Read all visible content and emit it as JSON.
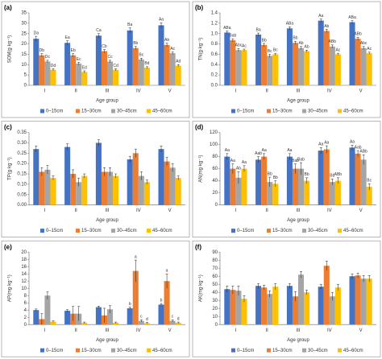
{
  "chart_data": [
    {
      "type": "bar",
      "panel": "(a)",
      "y_label": "SOM(g·kg⁻¹)",
      "x_label": "Age group",
      "categories": [
        "I",
        "II",
        "III",
        "IV",
        "V"
      ],
      "ylim": [
        0,
        35
      ],
      "yticks": [
        0,
        5,
        10,
        15,
        20,
        25,
        30,
        35
      ],
      "series": [
        {
          "name": "0–15cm",
          "color": "#4472c4",
          "values": [
            22.5,
            20.5,
            24,
            26.5,
            29
          ],
          "errors": [
            1.2,
            1,
            1,
            1.2,
            1.2
          ],
          "letters": [
            "Da",
            "Ea",
            "Ca",
            "Ba",
            "Aa"
          ]
        },
        {
          "name": "15–30cm",
          "color": "#ed7d31",
          "values": [
            14.5,
            14.5,
            16.5,
            18,
            19.5
          ],
          "errors": [
            0.8,
            0.8,
            0.8,
            0.8,
            0.8
          ],
          "letters": [
            "Db",
            "Eb",
            "Cb",
            "Bb",
            "Ab"
          ]
        },
        {
          "name": "30–45cm",
          "color": "#a5a5a5",
          "values": [
            11.5,
            10.5,
            11.5,
            12.5,
            15.5
          ],
          "errors": [
            0.6,
            0.6,
            0.6,
            0.6,
            0.6
          ],
          "letters": [
            "Dc",
            "Ec",
            "Cc",
            "Bc",
            "Ac"
          ]
        },
        {
          "name": "45–60cm",
          "color": "#ffc000",
          "values": [
            7.5,
            6.5,
            7.5,
            8.5,
            9.5
          ],
          "errors": [
            0.5,
            0.5,
            0.5,
            0.5,
            0.5
          ],
          "letters": [
            "Dd",
            "Ed",
            "Cd",
            "Bd",
            "Ad"
          ]
        }
      ]
    },
    {
      "type": "bar",
      "panel": "(b)",
      "y_label": "TN(g·kg⁻¹)",
      "x_label": "Age group",
      "categories": [
        "I",
        "II",
        "III",
        "IV",
        "V"
      ],
      "ylim": [
        0,
        1.4
      ],
      "yticks": [
        {
          "value": 0,
          "label": "0.0"
        },
        0.2,
        0.4,
        0.6,
        0.8,
        {
          "value": 1,
          "label": "1.0"
        },
        1.2,
        1.4
      ],
      "series": [
        {
          "name": "0–15cm",
          "color": "#4472c4",
          "values": [
            1.02,
            0.98,
            1.1,
            1.25,
            1.22
          ],
          "errors": [
            0.03,
            0.03,
            0.03,
            0.03,
            0.03
          ],
          "letters": [
            "ABa",
            "Ba",
            "ABa",
            "Aa",
            "ABa"
          ]
        },
        {
          "name": "15–30cm",
          "color": "#ed7d31",
          "values": [
            0.87,
            0.78,
            0.82,
            1.05,
            0.9
          ],
          "errors": [
            0.03,
            0.03,
            0.03,
            0.03,
            0.03
          ],
          "letters": [
            "Bab",
            "Bb",
            "Bb",
            "Ab",
            "ABb"
          ]
        },
        {
          "name": "30–45cm",
          "color": "#a5a5a5",
          "values": [
            0.68,
            0.57,
            0.72,
            0.75,
            0.72
          ],
          "errors": [
            0.03,
            0.03,
            0.03,
            0.03,
            0.03
          ],
          "letters": [
            "Abc",
            "Bc",
            "Ab",
            "ABb",
            "Abc"
          ]
        },
        {
          "name": "45–60cm",
          "color": "#ffc000",
          "values": [
            0.68,
            0.6,
            0.66,
            0.6,
            0.62
          ],
          "errors": [
            0.02,
            0.02,
            0.02,
            0.02,
            0.02
          ],
          "letters": [
            "Ac",
            "Bc",
            "Ab",
            "Ac",
            "Ac"
          ]
        }
      ]
    },
    {
      "type": "bar",
      "panel": "(c)",
      "y_label": "TP(g·kg⁻¹)",
      "x_label": "Age group",
      "categories": [
        "I",
        "II",
        "III",
        "IV",
        "V"
      ],
      "ylim": [
        0,
        0.35
      ],
      "yticks": [
        {
          "value": 0,
          "label": "0.00"
        },
        0.05,
        {
          "value": 0.1,
          "label": "0.10"
        },
        0.15,
        {
          "value": 0.2,
          "label": "0.20"
        },
        0.25,
        {
          "value": 0.3,
          "label": "0.30"
        },
        0.35
      ],
      "series": [
        {
          "name": "0–15cm",
          "color": "#4472c4",
          "values": [
            0.27,
            0.28,
            0.3,
            0.22,
            0.27
          ],
          "errors": [
            0.015,
            0.015,
            0.015,
            0.015,
            0.015
          ]
        },
        {
          "name": "15–30cm",
          "color": "#ed7d31",
          "values": [
            0.16,
            0.15,
            0.16,
            0.25,
            0.21
          ],
          "errors": [
            0.02,
            0.02,
            0.02,
            0.02,
            0.02
          ]
        },
        {
          "name": "30–45cm",
          "color": "#a5a5a5",
          "values": [
            0.17,
            0.11,
            0.16,
            0.14,
            0.18
          ],
          "errors": [
            0.02,
            0.02,
            0.02,
            0.02,
            0.02
          ]
        },
        {
          "name": "45–60cm",
          "color": "#ffc000",
          "values": [
            0.13,
            0.14,
            0.14,
            0.11,
            0.13
          ],
          "errors": [
            0.01,
            0.01,
            0.01,
            0.01,
            0.01
          ]
        }
      ]
    },
    {
      "type": "bar",
      "panel": "(d)",
      "y_label": "AN(mg·kg⁻¹)",
      "x_label": "Age group",
      "categories": [
        "I",
        "II",
        "III",
        "IV",
        "V"
      ],
      "ylim": [
        0,
        120
      ],
      "yticks": [
        0,
        20,
        40,
        60,
        80,
        100,
        120
      ],
      "series": [
        {
          "name": "0–15cm",
          "color": "#4472c4",
          "values": [
            80,
            75,
            80,
            90,
            95
          ],
          "errors": [
            5,
            5,
            5,
            5,
            4
          ],
          "letters": [
            "Aa",
            "Aab",
            "Aa",
            "Aa",
            "Aa"
          ]
        },
        {
          "name": "15–30cm",
          "color": "#ed7d31",
          "values": [
            60,
            80,
            60,
            92,
            85
          ],
          "errors": [
            8,
            5,
            8,
            6,
            5
          ],
          "letters": [
            "Aa",
            "Aa",
            "Bab",
            "Aa",
            "Aab"
          ]
        },
        {
          "name": "30–45cm",
          "color": "#a5a5a5",
          "values": [
            45,
            38,
            60,
            38,
            75
          ],
          "errors": [
            10,
            8,
            10,
            5,
            8
          ],
          "letters": [
            "Ab",
            "Bb",
            "Bab",
            "Bb",
            "ABb"
          ]
        },
        {
          "name": "45–60cm",
          "color": "#ffc000",
          "values": [
            60,
            35,
            40,
            40,
            30
          ],
          "errors": [
            5,
            5,
            5,
            5,
            5
          ],
          "letters": [
            "Aa",
            "Bb",
            "Bb",
            "ABb",
            "Bc"
          ]
        }
      ]
    },
    {
      "type": "bar",
      "panel": "(e)",
      "y_label": "AP(mg·kg⁻¹)",
      "x_label": "Age group",
      "categories": [
        "I",
        "II",
        "III",
        "IV",
        "V"
      ],
      "ylim": [
        0,
        20
      ],
      "yticks": [
        0,
        2,
        4,
        6,
        8,
        10,
        12,
        14,
        16,
        18,
        20
      ],
      "series": [
        {
          "name": "0–15cm",
          "color": "#4472c4",
          "values": [
            4,
            3.8,
            4.8,
            4.5,
            5.5
          ],
          "errors": [
            0.3,
            0.3,
            0.3,
            0.3,
            0.3
          ],
          "letters": [
            null,
            null,
            null,
            "b",
            "b"
          ]
        },
        {
          "name": "15–30cm",
          "color": "#ed7d31",
          "values": [
            1.5,
            3,
            2.5,
            14.8,
            12
          ],
          "errors": [
            1.5,
            2,
            2,
            3,
            2
          ],
          "letters": [
            null,
            null,
            null,
            "a",
            "a"
          ]
        },
        {
          "name": "30–45cm",
          "color": "#a5a5a5",
          "values": [
            8,
            3,
            4.2,
            1,
            1
          ],
          "errors": [
            1,
            2,
            1,
            0.3,
            0.3
          ],
          "letters": [
            null,
            null,
            null,
            "c",
            "c"
          ]
        },
        {
          "name": "45–60cm",
          "color": "#ffc000",
          "values": [
            0.8,
            0.5,
            0.5,
            0.4,
            0.5
          ],
          "errors": [
            0.2,
            0.2,
            0.2,
            0.2,
            0.2
          ],
          "letters": [
            null,
            null,
            null,
            "d",
            "d"
          ]
        }
      ]
    },
    {
      "type": "bar",
      "panel": "(f)",
      "y_label": "AK(mg·kg⁻¹)",
      "x_label": "Age group",
      "categories": [
        "I",
        "II",
        "III",
        "IV",
        "V"
      ],
      "ylim": [
        0,
        90
      ],
      "yticks": [
        0,
        10,
        20,
        30,
        40,
        50,
        60,
        70,
        80,
        90
      ],
      "series": [
        {
          "name": "0–15cm",
          "color": "#4472c4",
          "values": [
            44,
            48,
            48,
            47,
            60
          ],
          "errors": [
            4,
            3,
            3,
            3,
            3
          ],
          "letters": []
        },
        {
          "name": "15–30cm",
          "color": "#ed7d31",
          "values": [
            43,
            46,
            35,
            73,
            61
          ],
          "errors": [
            5,
            3,
            6,
            6,
            3
          ],
          "letters": []
        },
        {
          "name": "30–45cm",
          "color": "#a5a5a5",
          "values": [
            42,
            38,
            62,
            35,
            57
          ],
          "errors": [
            6,
            4,
            4,
            5,
            4
          ],
          "letters": []
        },
        {
          "name": "45–60cm",
          "color": "#ffc000",
          "values": [
            32,
            47,
            40,
            46,
            57
          ],
          "errors": [
            4,
            4,
            3,
            4,
            4
          ],
          "letters": []
        }
      ]
    }
  ]
}
